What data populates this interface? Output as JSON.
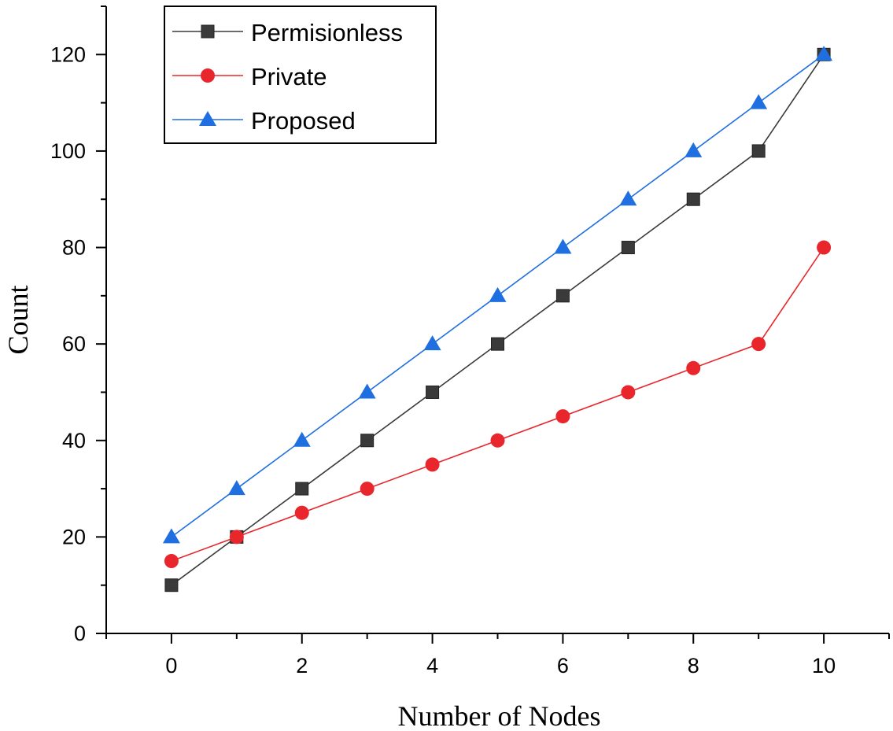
{
  "chart_data": {
    "type": "line",
    "title": "",
    "xlabel": "Number of Nodes",
    "ylabel": "Count",
    "xlim": [
      -1,
      11
    ],
    "ylim": [
      0,
      130
    ],
    "xticks": [
      0,
      2,
      4,
      6,
      8,
      10
    ],
    "yticks": [
      0,
      20,
      40,
      60,
      80,
      100,
      120
    ],
    "grid": false,
    "legend_position": "top-left",
    "x": [
      0,
      1,
      2,
      3,
      4,
      5,
      6,
      7,
      8,
      9,
      10
    ],
    "series": [
      {
        "name": "Permisionless",
        "color": "#3a3a3a",
        "marker": "square",
        "values": [
          10,
          20,
          30,
          40,
          50,
          60,
          70,
          80,
          90,
          100,
          120
        ]
      },
      {
        "name": "Private",
        "color": "#e8262b",
        "marker": "circle",
        "values": [
          15,
          20,
          25,
          30,
          35,
          40,
          45,
          50,
          55,
          60,
          80
        ]
      },
      {
        "name": "Proposed",
        "color": "#1f6fe0",
        "marker": "triangle",
        "values": [
          20,
          30,
          40,
          50,
          60,
          70,
          80,
          90,
          100,
          110,
          120
        ]
      }
    ]
  }
}
